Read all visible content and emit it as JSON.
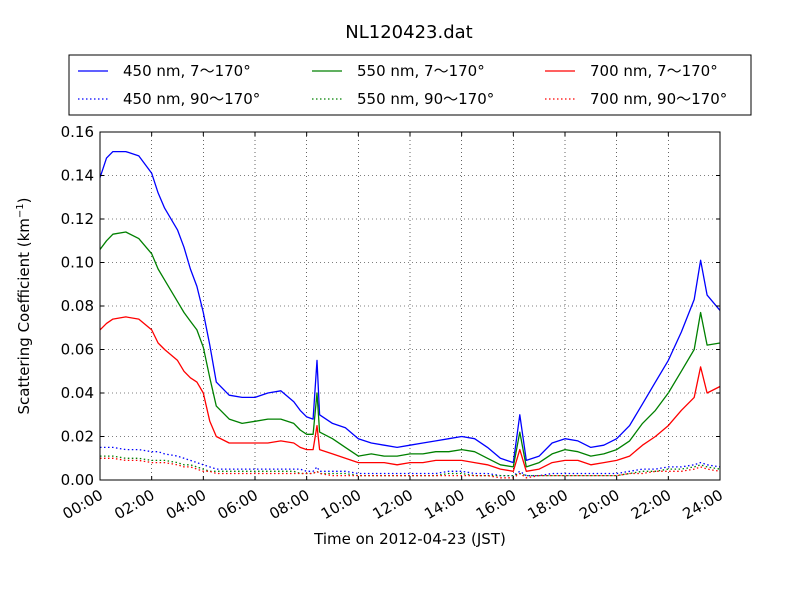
{
  "chart_data": {
    "type": "line",
    "title": "NL120423.dat",
    "xlabel": "Time on 2012-04-23 (JST)",
    "ylabel": "Scattering Coefficient (km",
    "ylabel_sup": "−1",
    "ylabel_end": ")",
    "xlim": [
      "00:00",
      "24:00"
    ],
    "ylim": [
      0,
      0.16
    ],
    "grid": true,
    "legend_position": "top",
    "x_ticks": [
      "00:00",
      "02:00",
      "04:00",
      "06:00",
      "08:00",
      "10:00",
      "12:00",
      "14:00",
      "16:00",
      "18:00",
      "20:00",
      "22:00",
      "24:00"
    ],
    "y_ticks": [
      "0.00",
      "0.02",
      "0.04",
      "0.06",
      "0.08",
      "0.10",
      "0.12",
      "0.14",
      "0.16"
    ],
    "x": [
      0,
      0.25,
      0.5,
      1,
      1.5,
      2,
      2.25,
      2.5,
      3,
      3.25,
      3.5,
      3.75,
      4,
      4.25,
      4.5,
      5,
      5.5,
      6,
      6.5,
      7,
      7.5,
      7.75,
      8,
      8.25,
      8.4,
      8.5,
      9,
      9.5,
      10,
      10.5,
      11,
      11.5,
      12,
      12.5,
      13,
      13.5,
      14,
      14.5,
      15,
      15.5,
      16,
      16.25,
      16.5,
      17,
      17.5,
      18,
      18.5,
      19,
      19.5,
      20,
      20.5,
      21,
      21.5,
      22,
      22.5,
      23,
      23.25,
      23.5,
      24
    ],
    "series": [
      {
        "name": "450 nm, 7～170°",
        "color": "#0000ff",
        "style": "solid",
        "values": [
          0.139,
          0.148,
          0.151,
          0.151,
          0.149,
          0.141,
          0.132,
          0.125,
          0.115,
          0.107,
          0.097,
          0.089,
          0.077,
          0.062,
          0.045,
          0.039,
          0.038,
          0.038,
          0.04,
          0.041,
          0.036,
          0.032,
          0.029,
          0.028,
          0.055,
          0.03,
          0.026,
          0.024,
          0.019,
          0.017,
          0.016,
          0.015,
          0.016,
          0.017,
          0.018,
          0.019,
          0.02,
          0.019,
          0.015,
          0.01,
          0.008,
          0.03,
          0.009,
          0.011,
          0.017,
          0.019,
          0.018,
          0.015,
          0.016,
          0.019,
          0.025,
          0.035,
          0.045,
          0.055,
          0.068,
          0.083,
          0.101,
          0.085,
          0.078
        ]
      },
      {
        "name": "550 nm, 7～170°",
        "color": "#008000",
        "style": "solid",
        "values": [
          0.106,
          0.11,
          0.113,
          0.114,
          0.111,
          0.104,
          0.097,
          0.092,
          0.082,
          0.077,
          0.073,
          0.069,
          0.061,
          0.047,
          0.034,
          0.028,
          0.026,
          0.027,
          0.028,
          0.028,
          0.026,
          0.023,
          0.021,
          0.021,
          0.04,
          0.022,
          0.019,
          0.015,
          0.011,
          0.012,
          0.011,
          0.011,
          0.012,
          0.012,
          0.013,
          0.013,
          0.014,
          0.013,
          0.01,
          0.007,
          0.006,
          0.022,
          0.006,
          0.008,
          0.012,
          0.014,
          0.013,
          0.011,
          0.012,
          0.014,
          0.018,
          0.026,
          0.032,
          0.04,
          0.05,
          0.06,
          0.077,
          0.062,
          0.063
        ]
      },
      {
        "name": "700 nm, 7～170°",
        "color": "#ff0000",
        "style": "solid",
        "values": [
          0.069,
          0.072,
          0.074,
          0.075,
          0.074,
          0.069,
          0.063,
          0.06,
          0.055,
          0.05,
          0.047,
          0.045,
          0.04,
          0.027,
          0.02,
          0.017,
          0.017,
          0.017,
          0.017,
          0.018,
          0.017,
          0.015,
          0.014,
          0.014,
          0.025,
          0.014,
          0.012,
          0.01,
          0.008,
          0.008,
          0.008,
          0.007,
          0.008,
          0.008,
          0.009,
          0.009,
          0.009,
          0.008,
          0.007,
          0.005,
          0.004,
          0.014,
          0.004,
          0.005,
          0.008,
          0.009,
          0.009,
          0.007,
          0.008,
          0.009,
          0.011,
          0.016,
          0.02,
          0.025,
          0.032,
          0.038,
          0.052,
          0.04,
          0.043
        ]
      },
      {
        "name": "450 nm, 90～170°",
        "color": "#0000ff",
        "style": "dotted",
        "values": [
          0.015,
          0.015,
          0.015,
          0.014,
          0.014,
          0.013,
          0.013,
          0.012,
          0.011,
          0.01,
          0.009,
          0.008,
          0.007,
          0.006,
          0.005,
          0.005,
          0.005,
          0.005,
          0.005,
          0.005,
          0.005,
          0.005,
          0.004,
          0.004,
          0.006,
          0.004,
          0.004,
          0.004,
          0.003,
          0.003,
          0.003,
          0.003,
          0.003,
          0.003,
          0.003,
          0.004,
          0.004,
          0.003,
          0.003,
          0.002,
          0.002,
          0.004,
          0.002,
          0.002,
          0.003,
          0.003,
          0.003,
          0.003,
          0.003,
          0.003,
          0.004,
          0.005,
          0.005,
          0.006,
          0.006,
          0.007,
          0.008,
          0.007,
          0.006
        ]
      },
      {
        "name": "550 nm, 90～170°",
        "color": "#008000",
        "style": "dotted",
        "values": [
          0.011,
          0.011,
          0.011,
          0.01,
          0.01,
          0.009,
          0.009,
          0.009,
          0.008,
          0.007,
          0.007,
          0.006,
          0.005,
          0.004,
          0.004,
          0.004,
          0.004,
          0.004,
          0.004,
          0.004,
          0.004,
          0.003,
          0.003,
          0.003,
          0.004,
          0.003,
          0.003,
          0.003,
          0.002,
          0.002,
          0.002,
          0.002,
          0.002,
          0.002,
          0.002,
          0.003,
          0.003,
          0.002,
          0.002,
          0.002,
          0.002,
          0.003,
          0.002,
          0.002,
          0.002,
          0.002,
          0.002,
          0.002,
          0.002,
          0.002,
          0.003,
          0.004,
          0.004,
          0.005,
          0.005,
          0.006,
          0.007,
          0.006,
          0.005
        ]
      },
      {
        "name": "700 nm, 90～170°",
        "color": "#ff0000",
        "style": "dotted",
        "values": [
          0.01,
          0.01,
          0.01,
          0.009,
          0.009,
          0.008,
          0.008,
          0.008,
          0.007,
          0.006,
          0.006,
          0.005,
          0.004,
          0.004,
          0.003,
          0.003,
          0.003,
          0.003,
          0.003,
          0.003,
          0.003,
          0.003,
          0.003,
          0.003,
          0.004,
          0.003,
          0.002,
          0.002,
          0.002,
          0.002,
          0.002,
          0.002,
          0.002,
          0.002,
          0.002,
          0.002,
          0.002,
          0.002,
          0.002,
          0.001,
          0.001,
          0.003,
          0.001,
          0.002,
          0.002,
          0.002,
          0.002,
          0.002,
          0.002,
          0.002,
          0.003,
          0.003,
          0.004,
          0.004,
          0.004,
          0.005,
          0.006,
          0.005,
          0.004
        ]
      }
    ]
  }
}
